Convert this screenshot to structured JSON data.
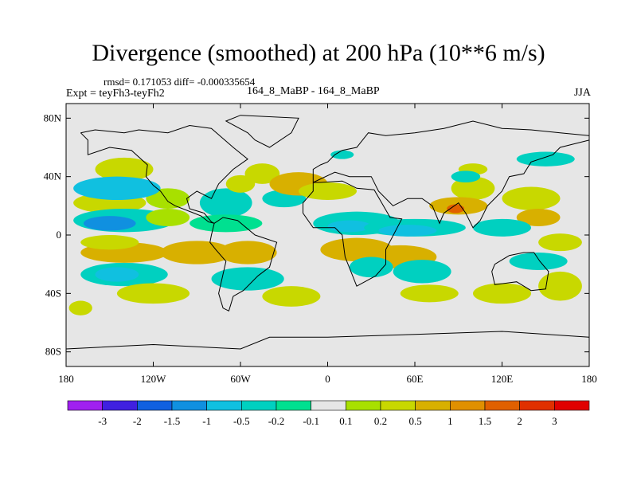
{
  "chart_data": {
    "type": "heatmap",
    "title": "Divergence (smoothed) at 200 hPa (10**6 m/s)",
    "stats": "rmsd= 0.171053 diff= -0.000335654",
    "experiment": "Expt = teyFh3-teyFh2",
    "case": "164_8_MaBP - 164_8_MaBP",
    "season": "JJA",
    "xlim": [
      -180,
      180
    ],
    "ylim": [
      -90,
      90
    ],
    "x_ticks": [
      {
        "value": -180,
        "label": "180"
      },
      {
        "value": -120,
        "label": "120W"
      },
      {
        "value": -60,
        "label": "60W"
      },
      {
        "value": 0,
        "label": "0"
      },
      {
        "value": 60,
        "label": "60E"
      },
      {
        "value": 120,
        "label": "120E"
      },
      {
        "value": 180,
        "label": "180"
      }
    ],
    "y_ticks": [
      {
        "value": 80,
        "label": "80N"
      },
      {
        "value": 40,
        "label": "40N"
      },
      {
        "value": 0,
        "label": "0"
      },
      {
        "value": -40,
        "label": "40S"
      },
      {
        "value": -80,
        "label": "80S"
      }
    ],
    "colorbar": {
      "colors": [
        "#a020f0",
        "#4020e0",
        "#1060e0",
        "#1090e0",
        "#10c0e0",
        "#00d0c0",
        "#00e090",
        "#e6e6e6",
        "#a8e000",
        "#c8d800",
        "#d8b000",
        "#e09000",
        "#e06000",
        "#e03000",
        "#e00000"
      ],
      "levels": [
        "-3",
        "-2",
        "-1.5",
        "-1",
        "-0.5",
        "-0.2",
        "-0.1",
        "0.1",
        "0.2",
        "0.5",
        "1",
        "1.5",
        "2",
        "3"
      ]
    },
    "fields": [
      {
        "level": 9,
        "cx": -140,
        "cy": 45,
        "rx": 20,
        "ry": 8
      },
      {
        "level": 9,
        "cx": -150,
        "cy": 22,
        "rx": 25,
        "ry": 7
      },
      {
        "level": 8,
        "cx": -110,
        "cy": 25,
        "rx": 15,
        "ry": 7
      },
      {
        "level": 4,
        "cx": -145,
        "cy": 32,
        "rx": 30,
        "ry": 8
      },
      {
        "level": 5,
        "cx": -140,
        "cy": 10,
        "rx": 35,
        "ry": 8
      },
      {
        "level": 3,
        "cx": -150,
        "cy": 8,
        "rx": 18,
        "ry": 5
      },
      {
        "level": 8,
        "cx": -110,
        "cy": 12,
        "rx": 15,
        "ry": 6
      },
      {
        "level": 10,
        "cx": -140,
        "cy": -12,
        "rx": 30,
        "ry": 7
      },
      {
        "level": 10,
        "cx": -90,
        "cy": -12,
        "rx": 25,
        "ry": 8
      },
      {
        "level": 9,
        "cx": -150,
        "cy": -5,
        "rx": 20,
        "ry": 5
      },
      {
        "level": 5,
        "cx": -140,
        "cy": -27,
        "rx": 30,
        "ry": 8
      },
      {
        "level": 4,
        "cx": -145,
        "cy": -27,
        "rx": 15,
        "ry": 5
      },
      {
        "level": 9,
        "cx": -120,
        "cy": -40,
        "rx": 25,
        "ry": 7
      },
      {
        "level": 5,
        "cx": -70,
        "cy": 22,
        "rx": 18,
        "ry": 10
      },
      {
        "level": 6,
        "cx": -70,
        "cy": 8,
        "rx": 25,
        "ry": 6
      },
      {
        "level": 9,
        "cx": -60,
        "cy": 35,
        "rx": 10,
        "ry": 6
      },
      {
        "level": 9,
        "cx": -45,
        "cy": 42,
        "rx": 12,
        "ry": 7
      },
      {
        "level": 5,
        "cx": -30,
        "cy": 25,
        "rx": 15,
        "ry": 6
      },
      {
        "level": 10,
        "cx": -55,
        "cy": -12,
        "rx": 20,
        "ry": 8
      },
      {
        "level": 5,
        "cx": -55,
        "cy": -30,
        "rx": 25,
        "ry": 8
      },
      {
        "level": 9,
        "cx": -25,
        "cy": -42,
        "rx": 20,
        "ry": 7
      },
      {
        "level": 10,
        "cx": -20,
        "cy": 35,
        "rx": 20,
        "ry": 8
      },
      {
        "level": 9,
        "cx": 0,
        "cy": 30,
        "rx": 20,
        "ry": 6
      },
      {
        "level": 5,
        "cx": 20,
        "cy": 8,
        "rx": 30,
        "ry": 8
      },
      {
        "level": 4,
        "cx": 15,
        "cy": 6,
        "rx": 15,
        "ry": 4
      },
      {
        "level": 5,
        "cx": 60,
        "cy": 5,
        "rx": 35,
        "ry": 6
      },
      {
        "level": 4,
        "cx": 55,
        "cy": 3,
        "rx": 20,
        "ry": 4
      },
      {
        "level": 10,
        "cx": 20,
        "cy": -10,
        "rx": 25,
        "ry": 8
      },
      {
        "level": 10,
        "cx": 50,
        "cy": -15,
        "rx": 25,
        "ry": 8
      },
      {
        "level": 5,
        "cx": 30,
        "cy": -22,
        "rx": 15,
        "ry": 7
      },
      {
        "level": 5,
        "cx": 65,
        "cy": -25,
        "rx": 20,
        "ry": 8
      },
      {
        "level": 9,
        "cx": 70,
        "cy": -40,
        "rx": 20,
        "ry": 6
      },
      {
        "level": 9,
        "cx": 100,
        "cy": 32,
        "rx": 15,
        "ry": 8
      },
      {
        "level": 10,
        "cx": 90,
        "cy": 20,
        "rx": 20,
        "ry": 6
      },
      {
        "level": 12,
        "cx": 88,
        "cy": 18,
        "rx": 6,
        "ry": 3
      },
      {
        "level": 9,
        "cx": 140,
        "cy": 25,
        "rx": 20,
        "ry": 8
      },
      {
        "level": 10,
        "cx": 145,
        "cy": 12,
        "rx": 15,
        "ry": 6
      },
      {
        "level": 5,
        "cx": 120,
        "cy": 5,
        "rx": 20,
        "ry": 6
      },
      {
        "level": 9,
        "cx": 160,
        "cy": -5,
        "rx": 15,
        "ry": 6
      },
      {
        "level": 5,
        "cx": 145,
        "cy": -18,
        "rx": 20,
        "ry": 6
      },
      {
        "level": 9,
        "cx": 120,
        "cy": -40,
        "rx": 20,
        "ry": 7
      },
      {
        "level": 9,
        "cx": 160,
        "cy": -35,
        "rx": 15,
        "ry": 10
      },
      {
        "level": 5,
        "cx": 150,
        "cy": 52,
        "rx": 20,
        "ry": 5
      },
      {
        "level": 9,
        "cx": 100,
        "cy": 45,
        "rx": 10,
        "ry": 4
      },
      {
        "level": 5,
        "cx": 95,
        "cy": 40,
        "rx": 10,
        "ry": 4
      },
      {
        "level": 5,
        "cx": 10,
        "cy": 55,
        "rx": 8,
        "ry": 3
      },
      {
        "level": 9,
        "cx": -170,
        "cy": -50,
        "rx": 8,
        "ry": 5
      }
    ],
    "coastline": [
      [
        [
          -170,
          70
        ],
        [
          -160,
          72
        ],
        [
          -140,
          70
        ],
        [
          -130,
          72
        ],
        [
          -110,
          70
        ],
        [
          -95,
          75
        ],
        [
          -80,
          73
        ],
        [
          -65,
          60
        ],
        [
          -55,
          52
        ],
        [
          -65,
          45
        ],
        [
          -75,
          35
        ],
        [
          -80,
          25
        ],
        [
          -90,
          30
        ],
        [
          -97,
          25
        ],
        [
          -95,
          18
        ],
        [
          -85,
          15
        ],
        [
          -80,
          9
        ],
        [
          -78,
          8
        ],
        [
          -82,
          9
        ],
        [
          -87,
          13
        ],
        [
          -92,
          15
        ],
        [
          -105,
          20
        ],
        [
          -110,
          23
        ],
        [
          -115,
          30
        ],
        [
          -120,
          34
        ],
        [
          -125,
          40
        ],
        [
          -124,
          48
        ],
        [
          -135,
          58
        ],
        [
          -150,
          60
        ],
        [
          -165,
          55
        ],
        [
          -165,
          65
        ],
        [
          -170,
          70
        ]
      ],
      [
        [
          -78,
          8
        ],
        [
          -72,
          12
        ],
        [
          -62,
          10
        ],
        [
          -50,
          0
        ],
        [
          -35,
          -5
        ],
        [
          -38,
          -15
        ],
        [
          -40,
          -22
        ],
        [
          -48,
          -28
        ],
        [
          -58,
          -38
        ],
        [
          -65,
          -42
        ],
        [
          -68,
          -52
        ],
        [
          -72,
          -50
        ],
        [
          -75,
          -40
        ],
        [
          -70,
          -18
        ],
        [
          -77,
          -10
        ],
        [
          -81,
          -5
        ],
        [
          -80,
          0
        ],
        [
          -78,
          8
        ]
      ],
      [
        [
          -50,
          65
        ],
        [
          -40,
          60
        ],
        [
          -25,
          70
        ],
        [
          -20,
          80
        ],
        [
          -60,
          82
        ],
        [
          -70,
          78
        ],
        [
          -55,
          70
        ],
        [
          -50,
          65
        ]
      ],
      [
        [
          -10,
          36
        ],
        [
          -5,
          36
        ],
        [
          10,
          37
        ],
        [
          20,
          32
        ],
        [
          32,
          31
        ],
        [
          43,
          12
        ],
        [
          51,
          11
        ],
        [
          40,
          -10
        ],
        [
          40,
          -20
        ],
        [
          33,
          -28
        ],
        [
          20,
          -35
        ],
        [
          12,
          -15
        ],
        [
          10,
          0
        ],
        [
          5,
          5
        ],
        [
          -10,
          5
        ],
        [
          -17,
          15
        ],
        [
          -17,
          22
        ],
        [
          -10,
          30
        ],
        [
          -10,
          36
        ]
      ],
      [
        [
          -10,
          36
        ],
        [
          -10,
          45
        ],
        [
          -5,
          48
        ],
        [
          0,
          50
        ],
        [
          5,
          55
        ],
        [
          10,
          58
        ],
        [
          20,
          60
        ],
        [
          28,
          70
        ],
        [
          40,
          68
        ],
        [
          60,
          70
        ],
        [
          80,
          73
        ],
        [
          100,
          78
        ],
        [
          120,
          73
        ],
        [
          140,
          72
        ],
        [
          160,
          70
        ],
        [
          180,
          68
        ],
        [
          180,
          65
        ],
        [
          160,
          60
        ],
        [
          155,
          55
        ],
        [
          140,
          50
        ],
        [
          135,
          42
        ],
        [
          125,
          40
        ],
        [
          120,
          30
        ],
        [
          110,
          20
        ],
        [
          105,
          10
        ],
        [
          100,
          5
        ],
        [
          95,
          15
        ],
        [
          90,
          22
        ],
        [
          80,
          15
        ],
        [
          77,
          8
        ],
        [
          72,
          20
        ],
        [
          65,
          25
        ],
        [
          55,
          25
        ],
        [
          45,
          20
        ],
        [
          35,
          30
        ],
        [
          30,
          40
        ],
        [
          20,
          40
        ],
        [
          15,
          40
        ],
        [
          5,
          43
        ],
        [
          -10,
          36
        ]
      ],
      [
        [
          115,
          -20
        ],
        [
          125,
          -14
        ],
        [
          135,
          -12
        ],
        [
          142,
          -12
        ],
        [
          146,
          -18
        ],
        [
          152,
          -25
        ],
        [
          150,
          -37
        ],
        [
          140,
          -38
        ],
        [
          130,
          -32
        ],
        [
          115,
          -34
        ],
        [
          113,
          -25
        ],
        [
          115,
          -20
        ]
      ],
      [
        [
          -180,
          -78
        ],
        [
          -120,
          -75
        ],
        [
          -60,
          -78
        ],
        [
          -40,
          -70
        ],
        [
          0,
          -70
        ],
        [
          60,
          -68
        ],
        [
          120,
          -66
        ],
        [
          180,
          -70
        ]
      ]
    ]
  }
}
